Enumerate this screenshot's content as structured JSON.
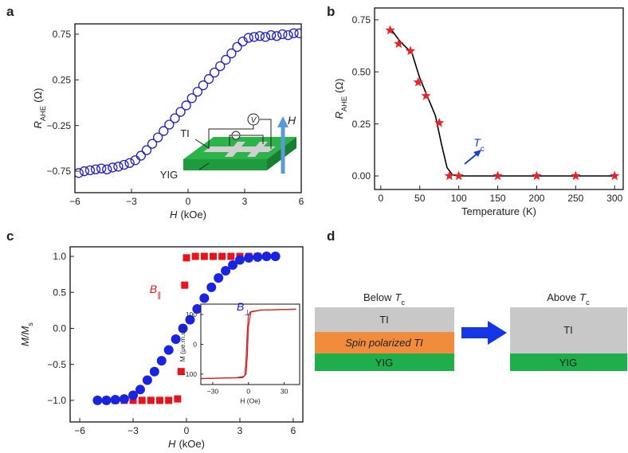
{
  "panels": [
    "a",
    "b",
    "c",
    "d"
  ],
  "chart_data": [
    {
      "type": "scatter",
      "xlabel": {
        "symbol": "H",
        "unit": "(kOe)"
      },
      "ylabel": {
        "symbol": "R",
        "sub": "AHE",
        "unit": "(Ω)"
      },
      "xlim": [
        -6,
        6
      ],
      "xticks": [
        {
          "value": -6,
          "label": "−6"
        },
        {
          "value": -3,
          "label": "−3"
        },
        0,
        3,
        6
      ],
      "ylim": [
        -0.985,
        0.863
      ],
      "yticks": [
        {
          "value": -0.75,
          "label": "−0.75"
        },
        {
          "value": -0.25,
          "label": "−0.25"
        },
        0.25,
        0.75
      ],
      "series": [
        {
          "marker": "open-circle",
          "color": "#1f1fcc",
          "x": [
            -5.8,
            -5.5,
            -5.2,
            -4.9,
            -4.6,
            -4.3,
            -4.0,
            -3.7,
            -3.4,
            -3.1,
            -2.8,
            -2.5,
            -2.2,
            -1.9,
            -1.6,
            -1.3,
            -1.0,
            -0.7,
            -0.4,
            -0.1,
            0.2,
            0.5,
            0.8,
            1.1,
            1.4,
            1.7,
            2.0,
            2.3,
            2.6,
            2.9,
            3.2,
            3.5,
            3.8,
            4.1,
            4.4,
            4.7,
            5.0,
            5.3,
            5.6,
            5.9
          ],
          "values": [
            -0.77,
            -0.75,
            -0.74,
            -0.73,
            -0.72,
            -0.73,
            -0.71,
            -0.7,
            -0.68,
            -0.66,
            -0.63,
            -0.58,
            -0.52,
            -0.45,
            -0.38,
            -0.31,
            -0.24,
            -0.17,
            -0.1,
            -0.03,
            0.05,
            0.12,
            0.19,
            0.26,
            0.33,
            0.4,
            0.47,
            0.54,
            0.61,
            0.67,
            0.71,
            0.72,
            0.73,
            0.72,
            0.74,
            0.73,
            0.75,
            0.74,
            0.76,
            0.76
          ]
        }
      ],
      "annotations": {
        "ti": "TI",
        "yig": "YIG",
        "voltage": "V",
        "field": "H"
      }
    },
    {
      "type": "scatter",
      "xlabel": "Temperature (K)",
      "ylabel": {
        "symbol": "R",
        "sub": "AHE",
        "unit": "(Ω)"
      },
      "xlim": [
        -8,
        311
      ],
      "xticks": [
        0,
        50,
        100,
        150,
        200,
        250,
        300
      ],
      "ylim": [
        -0.065,
        0.807
      ],
      "yticks": [
        {
          "value": 0,
          "label": "0.00"
        },
        0.25,
        {
          "value": 0.5,
          "label": "0.50"
        },
        0.75
      ],
      "series": [
        {
          "marker": "line",
          "color": "#000000",
          "x": [
            12,
            25,
            40,
            50,
            60,
            70,
            78,
            85,
            92,
            100,
            150,
            200,
            250,
            300
          ],
          "values": [
            0.71,
            0.645,
            0.59,
            0.47,
            0.38,
            0.29,
            0.15,
            0.04,
            0.005,
            0,
            0,
            0,
            0,
            0
          ]
        },
        {
          "marker": "star",
          "color": "#e8232a",
          "x": [
            12,
            23,
            38,
            48,
            58,
            75,
            88,
            100,
            150,
            200,
            250,
            300
          ],
          "values": [
            0.7,
            0.635,
            0.6,
            0.45,
            0.385,
            0.255,
            0,
            0,
            0,
            0,
            0,
            0
          ]
        }
      ],
      "annotations": {
        "tc": {
          "symbol": "T",
          "sub": "c"
        }
      }
    },
    {
      "type": "scatter",
      "xlabel": {
        "symbol": "H",
        "unit": "(kOe)"
      },
      "ylabel": {
        "symbol": "M/M",
        "sub": "s"
      },
      "xlim": [
        -6.54,
        6.54
      ],
      "xticks": [
        {
          "value": -6,
          "label": "−6"
        },
        {
          "value": -3,
          "label": "−3"
        },
        0,
        3,
        6
      ],
      "ylim": [
        -1.3,
        1.133
      ],
      "yticks": [
        {
          "value": -1,
          "label": "−1.0"
        },
        {
          "value": -0.5,
          "label": "−0.5"
        },
        {
          "value": 0,
          "label": "0.0"
        },
        0.5,
        {
          "value": 1,
          "label": "1.0"
        }
      ],
      "series": [
        {
          "marker": "square",
          "color": "#e8141c",
          "x": [
            -5,
            -4.5,
            -4,
            -3.5,
            -3,
            -2.5,
            -2,
            -1.5,
            -1,
            -0.5,
            -0.3,
            -0.2,
            -0.1,
            0,
            0.5,
            1,
            1.5,
            2,
            2.5,
            3,
            3.5,
            4,
            4.5,
            5
          ],
          "values": [
            -1,
            -1,
            -1,
            -1,
            -1,
            -1,
            -1,
            -1,
            -1,
            -0.98,
            -0.6,
            0,
            0.6,
            0.98,
            1,
            1,
            1,
            1,
            1,
            1,
            1,
            1,
            1,
            1
          ]
        },
        {
          "marker": "circle",
          "color": "#1a24e0",
          "x": [
            -5,
            -4.5,
            -4,
            -3.5,
            -3,
            -2.6,
            -2.2,
            -1.8,
            -1.4,
            -1,
            -0.6,
            -0.2,
            0.2,
            0.6,
            1,
            1.4,
            1.8,
            2.2,
            2.6,
            3,
            3.5,
            4,
            4.5,
            5
          ],
          "values": [
            -1,
            -1,
            -0.99,
            -0.98,
            -0.93,
            -0.85,
            -0.72,
            -0.6,
            -0.45,
            -0.3,
            -0.15,
            0,
            0.12,
            0.27,
            0.42,
            0.57,
            0.7,
            0.8,
            0.88,
            0.95,
            0.98,
            0.99,
            1,
            1
          ]
        }
      ],
      "annotations": {
        "b_par": {
          "symbol": "B",
          "sub": "∥"
        },
        "b_perp": {
          "symbol": "B",
          "sub": "⊥"
        }
      }
    },
    {
      "type": "line",
      "xlabel": "H (Oe)",
      "ylabel": "M (μe.m.u.)",
      "xlim": [
        -40,
        43
      ],
      "xticks": [
        {
          "value": -30,
          "label": "−30"
        },
        0,
        30
      ],
      "ylim": [
        -135,
        135
      ],
      "yticks": [
        {
          "value": -100,
          "label": "−100"
        },
        0,
        100
      ],
      "series": [
        {
          "marker": "line",
          "color": "#d42020",
          "x": [
            -40,
            -5,
            -3,
            -2,
            -1,
            0,
            2,
            10,
            40
          ],
          "values": [
            -115,
            -112,
            -105,
            -50,
            40,
            100,
            110,
            115,
            118
          ]
        },
        {
          "marker": "line",
          "color": "#d42020",
          "x": [
            40,
            10,
            2,
            0,
            -1,
            -2,
            -4,
            -10,
            -40
          ],
          "values": [
            118,
            115,
            108,
            60,
            -40,
            -100,
            -108,
            -112,
            -115
          ]
        }
      ]
    }
  ],
  "diagram": {
    "below": {
      "text": "Below",
      "symbol": "T",
      "sub": "c"
    },
    "above": {
      "text": "Above",
      "symbol": "T",
      "sub": "c"
    },
    "left_layers": [
      "TI",
      "Spin polarized TI",
      "YIG"
    ],
    "right_layers": [
      "TI",
      "YIG"
    ]
  }
}
